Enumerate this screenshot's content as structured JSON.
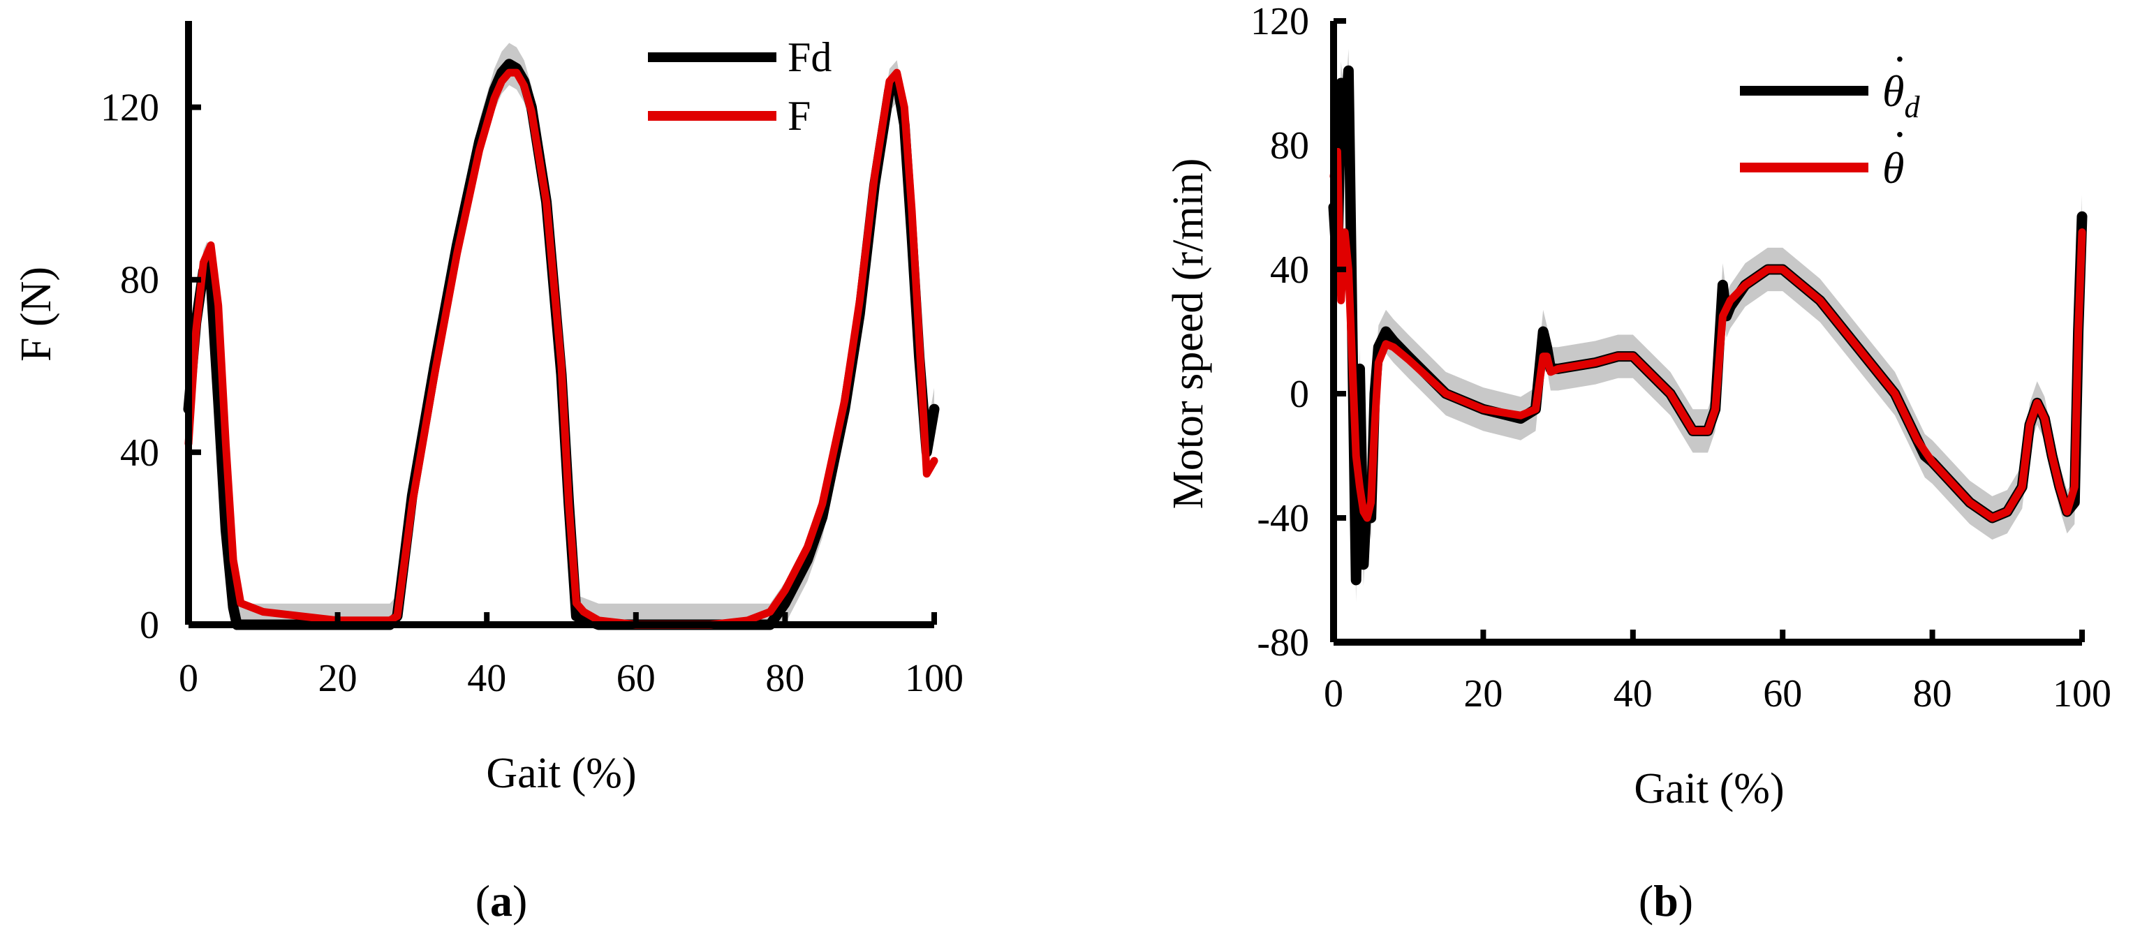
{
  "chart_data": [
    {
      "type": "line",
      "panel_label": "a",
      "caption": {
        "open": "(",
        "letter": "a",
        "close": ")"
      },
      "title": "",
      "xlabel": "Gait (%)",
      "ylabel": "F (N)",
      "xlim": [
        0,
        100
      ],
      "ylim": [
        0,
        140
      ],
      "xticks": [
        0,
        20,
        40,
        60,
        80,
        100
      ],
      "yticks": [
        0,
        40,
        80,
        120
      ],
      "grid": false,
      "legend": {
        "position": "top-right",
        "entries": [
          "Fd",
          "F"
        ]
      },
      "band_color": "#c8c8c8",
      "series": [
        {
          "name": "Fd",
          "color": "#000000",
          "x": [
            0,
            1,
            2,
            2.5,
            3,
            4,
            5,
            6,
            6.5,
            7,
            10,
            20,
            27,
            28,
            30,
            33,
            36,
            39,
            41,
            42,
            43,
            44,
            45,
            46,
            48,
            50,
            51,
            52,
            55,
            60,
            65,
            70,
            75,
            78,
            80,
            83,
            85,
            88,
            90,
            92,
            94,
            95,
            96,
            97,
            98,
            99,
            100
          ],
          "y": [
            50,
            70,
            82,
            84,
            80,
            52,
            22,
            4,
            0,
            0,
            0,
            0,
            0,
            2,
            30,
            60,
            88,
            112,
            124,
            128,
            130,
            129,
            126,
            120,
            98,
            58,
            28,
            2,
            0,
            0,
            0,
            0,
            0,
            0,
            5,
            15,
            25,
            50,
            72,
            102,
            124,
            126,
            116,
            90,
            62,
            40,
            50
          ]
        },
        {
          "name": "F",
          "color": "#e00000",
          "x": [
            0,
            1,
            2,
            3,
            4,
            5,
            6,
            7,
            10,
            20,
            27,
            28,
            30,
            33,
            36,
            39,
            41,
            42,
            43,
            44,
            45,
            46,
            48,
            50,
            51,
            52,
            53,
            55,
            60,
            65,
            70,
            75,
            78,
            80,
            83,
            85,
            88,
            90,
            92,
            94,
            95,
            96,
            97,
            98,
            99,
            100
          ],
          "y": [
            42,
            68,
            84,
            88,
            74,
            42,
            15,
            5,
            3,
            1,
            1,
            2,
            28,
            58,
            86,
            110,
            122,
            126,
            128,
            128,
            125,
            119,
            98,
            60,
            28,
            5,
            3,
            1,
            0,
            0,
            0,
            1,
            3,
            8,
            18,
            28,
            52,
            75,
            104,
            126,
            128,
            120,
            96,
            66,
            35,
            38
          ]
        }
      ]
    },
    {
      "type": "line",
      "panel_label": "b",
      "caption": {
        "open": "(",
        "letter": "b",
        "close": ")"
      },
      "title": "",
      "xlabel": "Gait (%)",
      "ylabel": "Motor speed (r/min)",
      "xlim": [
        0,
        100
      ],
      "ylim": [
        -80,
        120
      ],
      "xticks": [
        0,
        20,
        40,
        60,
        80,
        100
      ],
      "yticks": [
        -80,
        -40,
        0,
        40,
        80,
        120
      ],
      "grid": false,
      "legend": {
        "position": "top-right",
        "entries": [
          "θ̇d",
          "θ̇"
        ],
        "entry_notes": [
          "theta-dot-d",
          "theta-dot"
        ]
      },
      "legend_symbols": {
        "theta": "θ",
        "sub_d": "d",
        "dot": "·"
      },
      "band_color": "#c8c8c8",
      "series": [
        {
          "name": "θ̇d",
          "color": "#000000",
          "x": [
            0,
            0.5,
            1,
            1.5,
            2,
            2.5,
            3,
            3.5,
            4,
            4.5,
            5,
            5.5,
            6,
            7,
            8,
            10,
            15,
            20,
            25,
            27,
            28,
            28.5,
            29,
            30,
            35,
            38,
            40,
            45,
            48,
            50,
            51,
            52,
            52.5,
            53,
            55,
            58,
            60,
            65,
            70,
            75,
            78,
            79,
            80,
            85,
            88,
            90,
            92,
            93,
            94,
            95,
            96,
            97,
            98,
            99,
            99.5,
            100
          ],
          "y": [
            60,
            40,
            100,
            85,
            104,
            20,
            -60,
            8,
            -55,
            -30,
            -40,
            0,
            15,
            20,
            17,
            12,
            0,
            -5,
            -8,
            -5,
            20,
            15,
            8,
            8,
            10,
            12,
            12,
            0,
            -12,
            -12,
            -5,
            35,
            25,
            28,
            35,
            40,
            40,
            30,
            15,
            0,
            -15,
            -20,
            -22,
            -35,
            -40,
            -38,
            -30,
            -10,
            -3,
            -8,
            -20,
            -30,
            -38,
            -35,
            20,
            57
          ]
        },
        {
          "name": "θ̇",
          "color": "#e00000",
          "x": [
            0,
            0.5,
            1,
            1.5,
            2,
            2.5,
            3,
            3.5,
            4,
            4.5,
            5,
            5.5,
            6,
            7,
            8,
            10,
            15,
            20,
            25,
            27,
            28,
            28.5,
            29,
            30,
            35,
            38,
            40,
            45,
            48,
            50,
            51,
            52,
            53,
            55,
            58,
            60,
            65,
            70,
            75,
            78,
            80,
            85,
            88,
            90,
            92,
            93,
            94,
            95,
            96,
            97,
            98,
            99,
            99.5,
            100
          ],
          "y": [
            70,
            78,
            30,
            52,
            40,
            10,
            -20,
            -30,
            -38,
            -40,
            -35,
            -10,
            10,
            16,
            15,
            11,
            0,
            -5,
            -7,
            -5,
            12,
            12,
            7,
            8,
            10,
            12,
            12,
            0,
            -12,
            -12,
            -5,
            25,
            30,
            35,
            40,
            40,
            30,
            15,
            0,
            -15,
            -22,
            -35,
            -40,
            -38,
            -30,
            -10,
            -3,
            -8,
            -20,
            -30,
            -38,
            -30,
            20,
            52
          ]
        }
      ]
    }
  ]
}
